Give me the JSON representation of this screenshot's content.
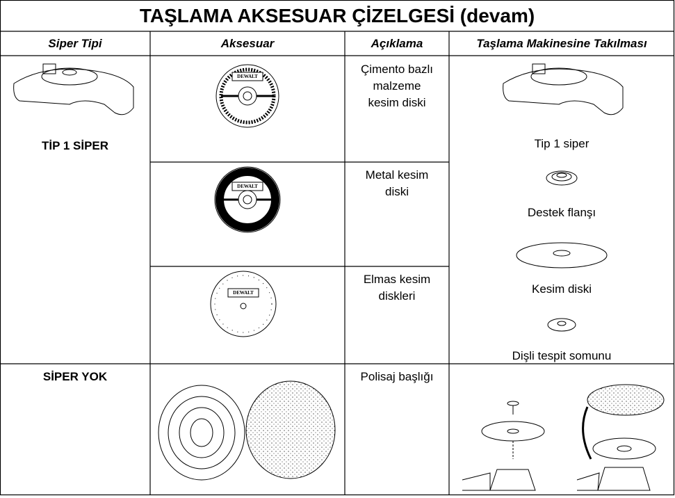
{
  "header": {
    "title": "TAŞLAMA AKSESUAR ÇİZELGESİ (devam)"
  },
  "table": {
    "columns": [
      "Siper Tipi",
      "Aksesuar",
      "Açıklama",
      "Taşlama Makinesine Takılması"
    ],
    "brand": "DEWALT",
    "rows": [
      {
        "guard": "TİP 1 SİPER",
        "descriptions": [
          [
            "Çimento bazlı",
            "malzeme",
            "kesim diski"
          ],
          [
            "Metal kesim",
            "diski"
          ],
          [
            "Elmas kesim",
            "diskleri"
          ]
        ],
        "mounting": [
          "Tip 1 siper",
          "Destek flanşı",
          "Kesim diski",
          "Dişli tespit somunu"
        ]
      },
      {
        "guard": "SİPER YOK",
        "descriptions": [
          [
            "Polisaj başlığı"
          ]
        ]
      }
    ]
  }
}
